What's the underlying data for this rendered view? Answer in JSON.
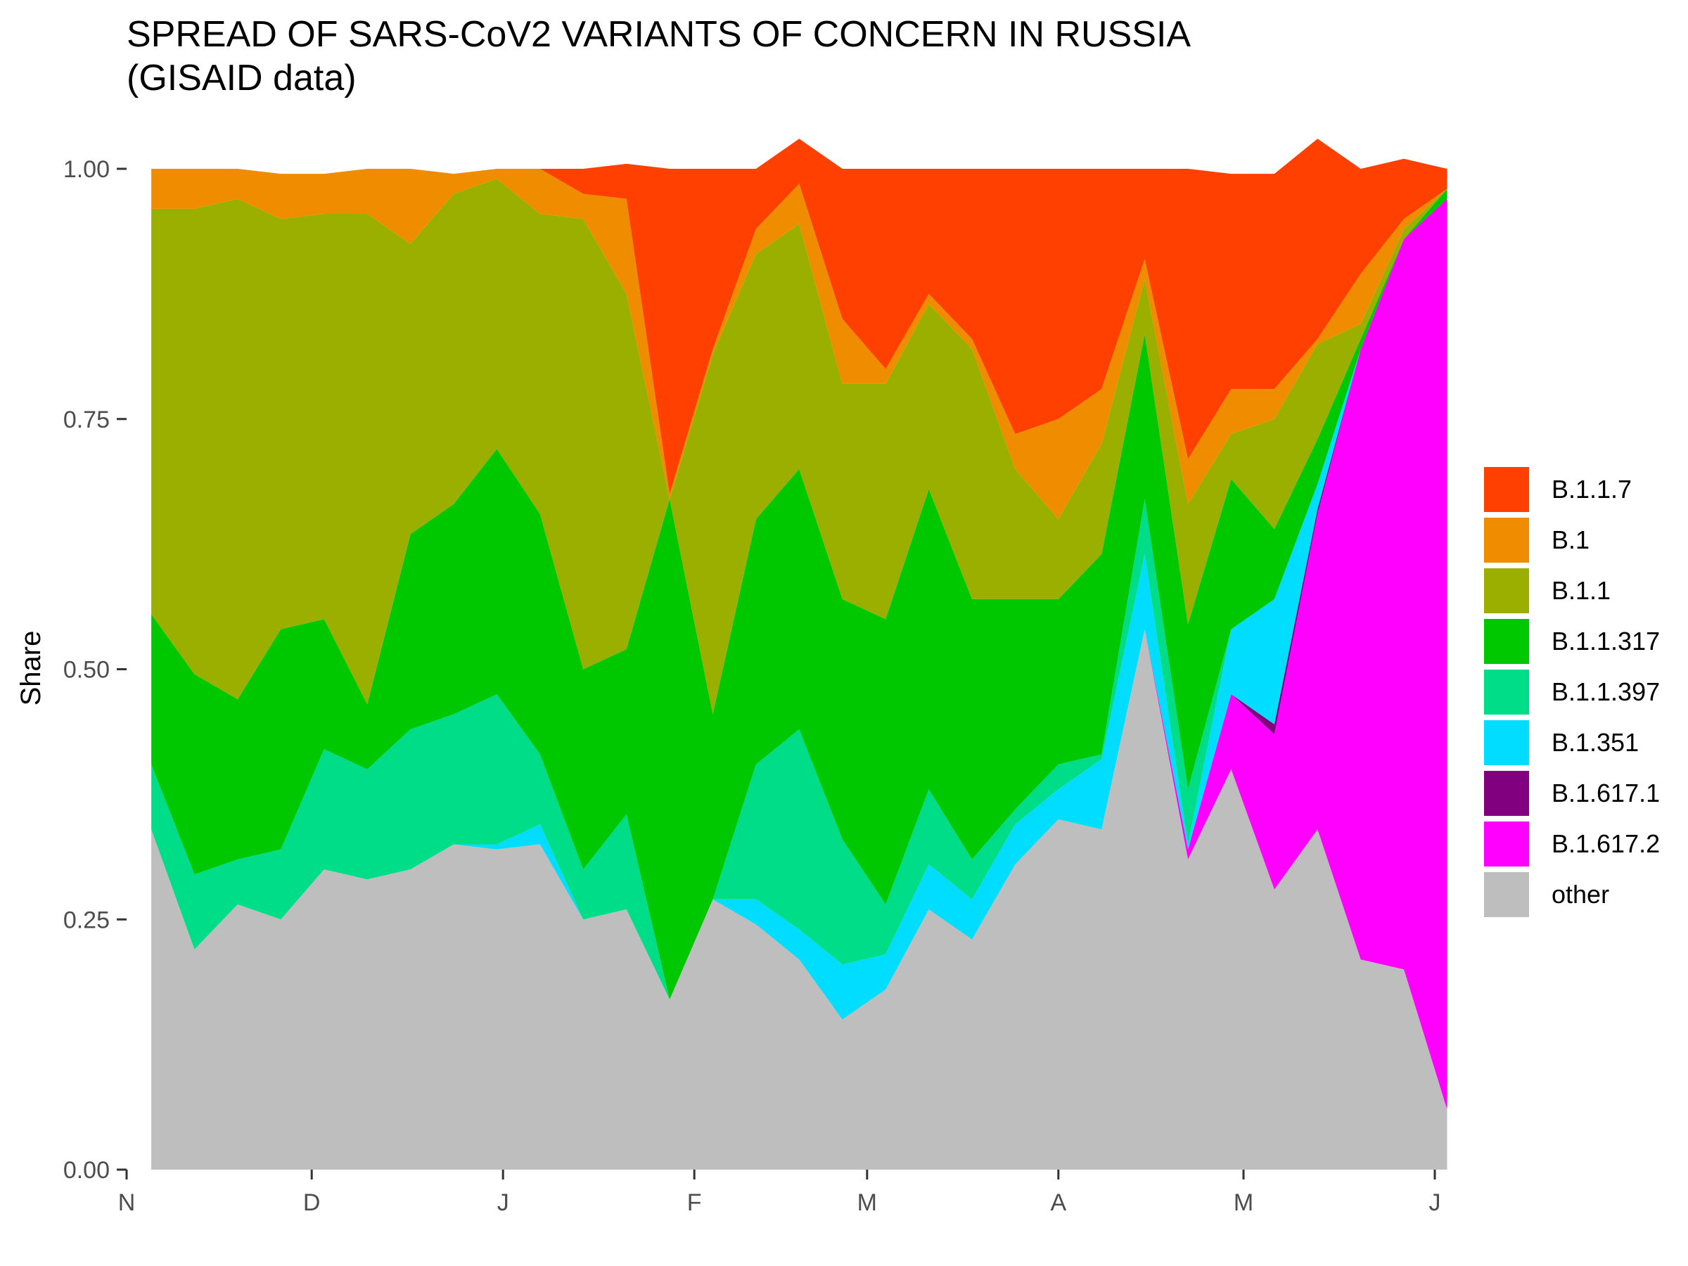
{
  "chart_data": {
    "type": "area",
    "stacked": true,
    "normalized": true,
    "title": "SPREAD OF SARS-CoV2 VARIANTS OF CONCERN IN RUSSIA",
    "subtitle": "(GISAID data)",
    "xlabel": "",
    "ylabel": "Share",
    "ylim": [
      0,
      1
    ],
    "y_ticks": [
      "0.00",
      "0.25",
      "0.50",
      "0.75",
      "1.00"
    ],
    "x_tick_labels": [
      "N",
      "D",
      "J",
      "F",
      "M",
      "A",
      "M",
      "J"
    ],
    "x_tick_dates": [
      "2020-11-01",
      "2020-12-01",
      "2021-01-01",
      "2021-02-01",
      "2021-03-01",
      "2021-04-01",
      "2021-05-01",
      "2021-06-01"
    ],
    "xlim": [
      "2020-11-01",
      "2021-06-01"
    ],
    "legend_position": "right",
    "grid": false,
    "x": [
      "2020-11-05",
      "2020-11-12",
      "2020-11-19",
      "2020-11-26",
      "2020-12-03",
      "2020-12-10",
      "2020-12-17",
      "2020-12-24",
      "2020-12-31",
      "2021-01-07",
      "2021-01-14",
      "2021-01-21",
      "2021-01-28",
      "2021-02-04",
      "2021-02-11",
      "2021-02-18",
      "2021-02-25",
      "2021-03-04",
      "2021-03-11",
      "2021-03-18",
      "2021-03-25",
      "2021-04-01",
      "2021-04-08",
      "2021-04-15",
      "2021-04-22",
      "2021-04-29",
      "2021-05-06",
      "2021-05-13",
      "2021-05-20",
      "2021-05-27",
      "2021-06-03"
    ],
    "series": [
      {
        "name": "other",
        "color": "#BEBEBE",
        "values": [
          0.34,
          0.22,
          0.265,
          0.25,
          0.3,
          0.29,
          0.3,
          0.325,
          0.32,
          0.325,
          0.25,
          0.26,
          0.17,
          0.27,
          0.245,
          0.21,
          0.15,
          0.18,
          0.26,
          0.23,
          0.305,
          0.35,
          0.34,
          0.54,
          0.31,
          0.4,
          0.28,
          0.34,
          0.21,
          0.2,
          0.06
        ]
      },
      {
        "name": "B.1.617.2",
        "color": "#FF00FF",
        "values": [
          0,
          0,
          0,
          0,
          0,
          0,
          0,
          0,
          0,
          0,
          0,
          0,
          0,
          0,
          0,
          0,
          0,
          0,
          0,
          0,
          0,
          0,
          0,
          0,
          0.01,
          0.075,
          0.155,
          0.315,
          0.61,
          0.73,
          0.91
        ]
      },
      {
        "name": "B.1.617.1",
        "color": "#800080",
        "values": [
          0,
          0,
          0,
          0,
          0,
          0,
          0,
          0,
          0,
          0,
          0,
          0,
          0,
          0,
          0,
          0,
          0,
          0,
          0,
          0,
          0,
          0,
          0,
          0,
          0,
          0,
          0.01,
          0.005,
          0,
          0,
          0
        ]
      },
      {
        "name": "B.1.351",
        "color": "#00DDFF",
        "values": [
          0,
          0,
          0,
          0,
          0,
          0,
          0,
          0,
          0.005,
          0.02,
          0,
          0,
          0,
          0,
          0.025,
          0.03,
          0.055,
          0.035,
          0.045,
          0.04,
          0.04,
          0.03,
          0.07,
          0.075,
          0.005,
          0.065,
          0.125,
          0.025,
          0,
          0,
          0
        ]
      },
      {
        "name": "B.1.1.397",
        "color": "#00DD88",
        "values": [
          0.065,
          0.075,
          0.045,
          0.07,
          0.12,
          0.11,
          0.14,
          0.13,
          0.15,
          0.07,
          0.05,
          0.095,
          0,
          0,
          0.135,
          0.2,
          0.125,
          0.05,
          0.075,
          0.04,
          0.015,
          0.025,
          0.005,
          0.055,
          0.055,
          0,
          0,
          0,
          0,
          0,
          0
        ]
      },
      {
        "name": "B.1.1.317",
        "color": "#00C800",
        "values": [
          0.15,
          0.2,
          0.16,
          0.22,
          0.13,
          0.065,
          0.195,
          0.21,
          0.245,
          0.24,
          0.2,
          0.165,
          0.5,
          0.185,
          0.245,
          0.26,
          0.24,
          0.285,
          0.3,
          0.26,
          0.21,
          0.165,
          0.2,
          0.165,
          0.165,
          0.15,
          0.07,
          0.045,
          0.01,
          0,
          0.01
        ]
      },
      {
        "name": "B.1.1",
        "color": "#9BAF00",
        "values": [
          0.405,
          0.465,
          0.5,
          0.41,
          0.405,
          0.49,
          0.29,
          0.31,
          0.27,
          0.3,
          0.45,
          0.355,
          0,
          0.36,
          0.265,
          0.245,
          0.215,
          0.235,
          0.185,
          0.25,
          0.13,
          0.08,
          0.11,
          0.055,
          0.12,
          0.045,
          0.11,
          0.095,
          0.015,
          0.01,
          0
        ]
      },
      {
        "name": "B.1",
        "color": "#F08C00",
        "values": [
          0.04,
          0.04,
          0.03,
          0.045,
          0.04,
          0.045,
          0.075,
          0.02,
          0.01,
          0.045,
          0.025,
          0.095,
          0.005,
          0.005,
          0.025,
          0.04,
          0.065,
          0.015,
          0.01,
          0.01,
          0.035,
          0.1,
          0.055,
          0.02,
          0.045,
          0.045,
          0.03,
          0.005,
          0.05,
          0.01,
          0
        ]
      },
      {
        "name": "B.1.1.7",
        "color": "#FF4000",
        "values": [
          0,
          0,
          0,
          0,
          0,
          0,
          0,
          0,
          0,
          0,
          0.025,
          0.035,
          0.325,
          0.18,
          0.06,
          0.045,
          0.15,
          0.2,
          0.125,
          0.17,
          0.265,
          0.25,
          0.22,
          0.09,
          0.29,
          0.215,
          0.215,
          0.2,
          0.105,
          0.06,
          0.02
        ]
      }
    ]
  }
}
